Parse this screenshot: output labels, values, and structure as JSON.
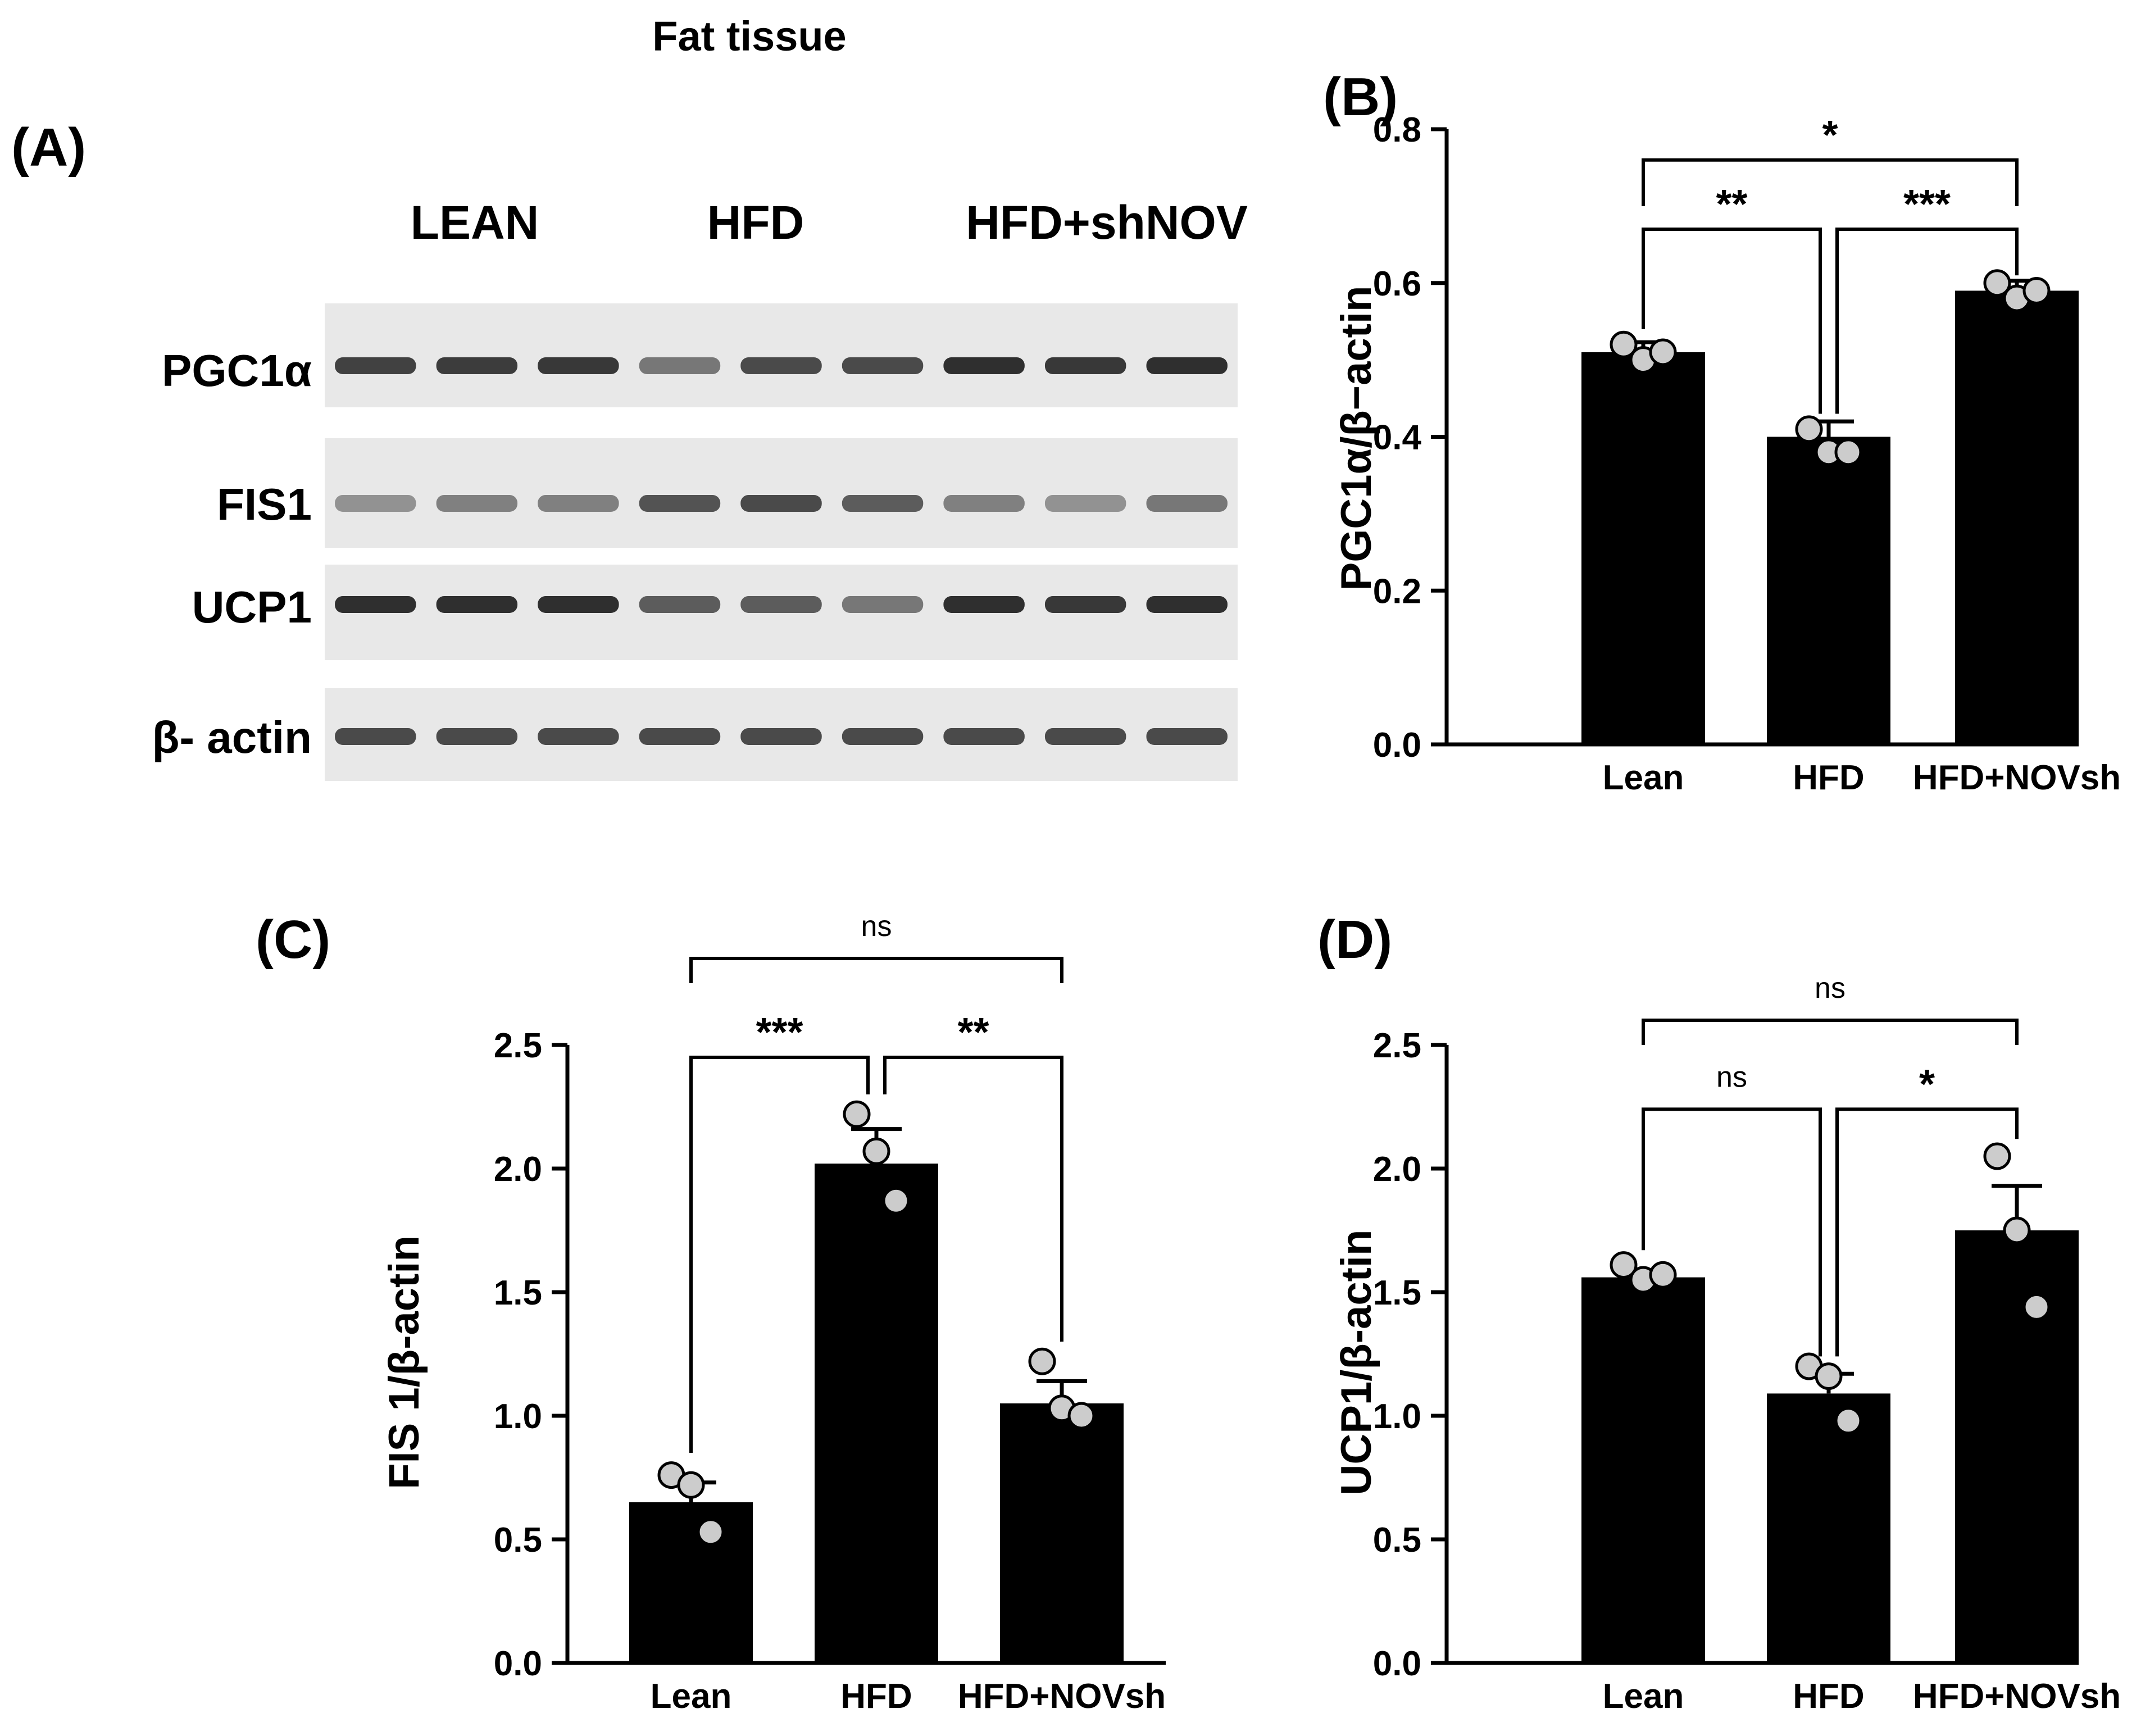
{
  "blot": {
    "panel_label": "(A)",
    "tissue": "Fat tissue",
    "groups": [
      "LEAN",
      "HFD",
      "HFD+shNOV"
    ],
    "rows": [
      {
        "name": "PGC1α",
        "intensity": [
          0.75,
          0.78,
          0.8,
          0.45,
          0.7,
          0.7,
          0.85,
          0.8,
          0.85
        ]
      },
      {
        "name": "FIS1",
        "intensity": [
          0.3,
          0.4,
          0.4,
          0.65,
          0.7,
          0.6,
          0.4,
          0.3,
          0.45
        ]
      },
      {
        "name": "UCP1",
        "intensity": [
          0.85,
          0.85,
          0.85,
          0.6,
          0.6,
          0.45,
          0.85,
          0.8,
          0.85
        ]
      },
      {
        "name": "β- actin",
        "intensity": [
          0.7,
          0.7,
          0.7,
          0.7,
          0.7,
          0.7,
          0.7,
          0.7,
          0.7
        ]
      }
    ]
  },
  "chart_data": [
    {
      "panel_label": "(B)",
      "type": "bar",
      "categories": [
        "Lean",
        "HFD",
        "HFD+NOVsh"
      ],
      "values": [
        0.51,
        0.4,
        0.59
      ],
      "sem": [
        0.013,
        0.02,
        0.013
      ],
      "points": [
        [
          0.52,
          0.5,
          0.51
        ],
        [
          0.41,
          0.38,
          0.38
        ],
        [
          0.6,
          0.58,
          0.59
        ]
      ],
      "ylabel_parts": [
        "PGC1",
        "α",
        "/",
        "β",
        "−actin"
      ],
      "ylim": [
        0,
        0.8
      ],
      "yticks": [
        0.0,
        0.2,
        0.4,
        0.6,
        0.8
      ],
      "ytick_labels": [
        "0.0",
        "0.2",
        "0.4",
        "0.6",
        "0.8"
      ],
      "comparisons": [
        {
          "from": 0,
          "to": 1,
          "label": "**",
          "top": 0.67,
          "drop_from": 0.54,
          "drop_to": 0.43
        },
        {
          "from": 1,
          "to": 2,
          "label": "***",
          "top": 0.67,
          "drop_from": 0.43,
          "drop_to": 0.61
        },
        {
          "from": 0,
          "to": 2,
          "label": "*",
          "top": 0.76,
          "drop_from": 0.7,
          "drop_to": 0.7
        }
      ]
    },
    {
      "panel_label": "(C)",
      "type": "bar",
      "categories": [
        "Lean",
        "HFD",
        "HFD+NOVsh"
      ],
      "values": [
        0.65,
        2.02,
        1.05
      ],
      "sem": [
        0.08,
        0.14,
        0.09
      ],
      "points": [
        [
          0.76,
          0.72,
          0.53
        ],
        [
          2.22,
          2.07,
          1.87
        ],
        [
          1.22,
          1.03,
          1.0
        ]
      ],
      "ylabel_parts": [
        "FIS 1/",
        "β",
        "-actin"
      ],
      "ylim": [
        0,
        2.5
      ],
      "yticks": [
        0.0,
        0.5,
        1.0,
        1.5,
        2.0,
        2.5
      ],
      "ytick_labels": [
        "0.0",
        "0.5",
        "1.0",
        "1.5",
        "2.0",
        "2.5"
      ],
      "comparisons": [
        {
          "from": 0,
          "to": 1,
          "label": "***",
          "top": 2.45,
          "drop_from": 0.85,
          "drop_to": 2.3
        },
        {
          "from": 1,
          "to": 2,
          "label": "**",
          "top": 2.45,
          "drop_from": 2.3,
          "drop_to": 1.3
        },
        {
          "from": 0,
          "to": 2,
          "label": "ns",
          "top": 2.85,
          "drop_from": 2.75,
          "drop_to": 2.75
        }
      ]
    },
    {
      "panel_label": "(D)",
      "type": "bar",
      "categories": [
        "Lean",
        "HFD",
        "HFD+NOVsh"
      ],
      "values": [
        1.56,
        1.09,
        1.75
      ],
      "sem": [
        0.03,
        0.08,
        0.18
      ],
      "points": [
        [
          1.61,
          1.55,
          1.57
        ],
        [
          1.2,
          1.16,
          0.98
        ],
        [
          2.05,
          1.75,
          1.44
        ]
      ],
      "ylabel_parts": [
        "UCP1/",
        "β",
        "-actin"
      ],
      "ylim": [
        0,
        2.5
      ],
      "yticks": [
        0.0,
        0.5,
        1.0,
        1.5,
        2.0,
        2.5
      ],
      "ytick_labels": [
        "0.0",
        "0.5",
        "1.0",
        "1.5",
        "2.0",
        "2.5"
      ],
      "comparisons": [
        {
          "from": 0,
          "to": 1,
          "label": "ns",
          "top": 2.24,
          "drop_from": 1.67,
          "drop_to": 1.24
        },
        {
          "from": 1,
          "to": 2,
          "label": "*",
          "top": 2.24,
          "drop_from": 1.24,
          "drop_to": 2.12
        },
        {
          "from": 0,
          "to": 2,
          "label": "ns",
          "top": 2.6,
          "drop_from": 2.5,
          "drop_to": 2.5
        }
      ]
    }
  ]
}
